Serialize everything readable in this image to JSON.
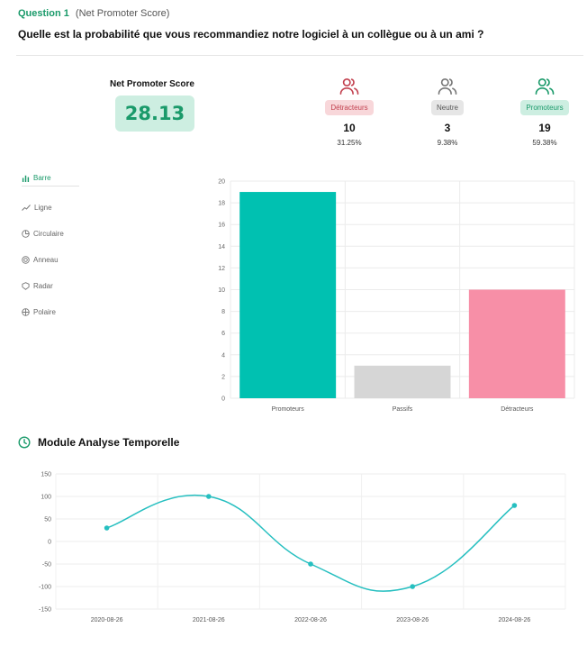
{
  "question": {
    "number_label": "Question 1",
    "type_label": "(Net Promoter Score)",
    "text": "Quelle est la probabilité que vous recommandiez notre logiciel à un collègue ou à un ami ?"
  },
  "nps": {
    "title": "Net Promoter Score",
    "score": "28.13"
  },
  "categories": [
    {
      "label": "Détracteurs",
      "count": "10",
      "percent": "31.25%",
      "color": "#c2404e",
      "icon": "users-icon"
    },
    {
      "label": "Neutre",
      "count": "3",
      "percent": "9.38%",
      "color": "#777777",
      "icon": "users-icon"
    },
    {
      "label": "Promoteurs",
      "count": "19",
      "percent": "59.38%",
      "color": "#1a9a6a",
      "icon": "users-icon"
    }
  ],
  "chart_menu": [
    {
      "label": "Barre",
      "icon": "bar-chart-icon",
      "active": true
    },
    {
      "label": "Ligne",
      "icon": "line-chart-icon",
      "active": false
    },
    {
      "label": "Circulaire",
      "icon": "pie-chart-icon",
      "active": false
    },
    {
      "label": "Anneau",
      "icon": "donut-chart-icon",
      "active": false
    },
    {
      "label": "Radar",
      "icon": "radar-chart-icon",
      "active": false
    },
    {
      "label": "Polaire",
      "icon": "polar-chart-icon",
      "active": false
    }
  ],
  "timeline_section": {
    "title": "Module Analyse Temporelle",
    "icon": "clock-icon"
  },
  "chart_data": [
    {
      "type": "bar",
      "categories": [
        "Promoteurs",
        "Passifs",
        "Détracteurs"
      ],
      "values": [
        19,
        3,
        10
      ],
      "colors": [
        "#00c1b1",
        "#d6d6d6",
        "#f78fa7"
      ],
      "ylim": [
        0,
        20
      ],
      "yticks": [
        0,
        2,
        4,
        6,
        8,
        10,
        12,
        14,
        16,
        18,
        20
      ],
      "grid": true
    },
    {
      "type": "line",
      "x": [
        "2020-08-26",
        "2021-08-26",
        "2022-08-26",
        "2023-08-26",
        "2024-08-26"
      ],
      "values": [
        30,
        100,
        -50,
        -100,
        80
      ],
      "color": "#26bfc0",
      "ylim": [
        -150,
        150
      ],
      "yticks": [
        -150,
        -100,
        -50,
        0,
        50,
        100,
        150
      ],
      "grid": true
    }
  ]
}
